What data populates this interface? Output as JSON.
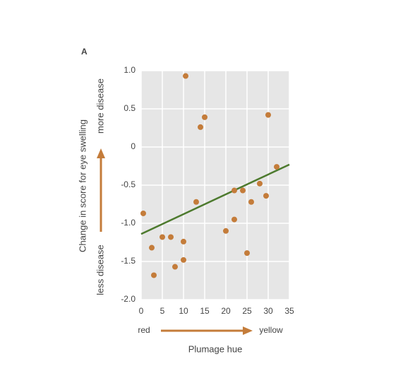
{
  "chart_data": {
    "type": "scatter",
    "panel_label": "A",
    "x_label": "Plumage hue",
    "y_label": "Change in score for eye swelling",
    "x_low_label": "red",
    "x_high_label": "yellow",
    "y_low_label": "less disease",
    "y_high_label": "more disease",
    "series": [
      {
        "color": "#c47c3a",
        "x": [
          0.5,
          2.5,
          3,
          5,
          7,
          8,
          10,
          10,
          10.5,
          13,
          14,
          15,
          20,
          22,
          22,
          24,
          25,
          26,
          28,
          29.5,
          30,
          32
        ],
        "values": [
          -0.87,
          -1.32,
          -1.68,
          -1.18,
          -1.18,
          -1.57,
          -1.24,
          -1.48,
          0.93,
          -0.72,
          0.26,
          0.39,
          -1.1,
          -0.57,
          -0.95,
          -0.57,
          -1.39,
          -0.72,
          -0.48,
          -0.64,
          0.42,
          -0.26
        ]
      }
    ],
    "trend_line": {
      "color": "#4d7a2e",
      "x": [
        0,
        35
      ],
      "values": [
        -1.14,
        -0.23
      ]
    },
    "xlim": [
      0,
      35
    ],
    "xticks": [
      0,
      5,
      10,
      15,
      20,
      25,
      30,
      35
    ],
    "ylim": [
      -2,
      1
    ],
    "yticks": [
      {
        "value": -2,
        "label": "-2.0"
      },
      -1.5,
      {
        "value": -1,
        "label": "-1.0"
      },
      -0.5,
      0,
      0.5,
      {
        "value": 1,
        "label": "1.0"
      }
    ],
    "grid": true
  }
}
